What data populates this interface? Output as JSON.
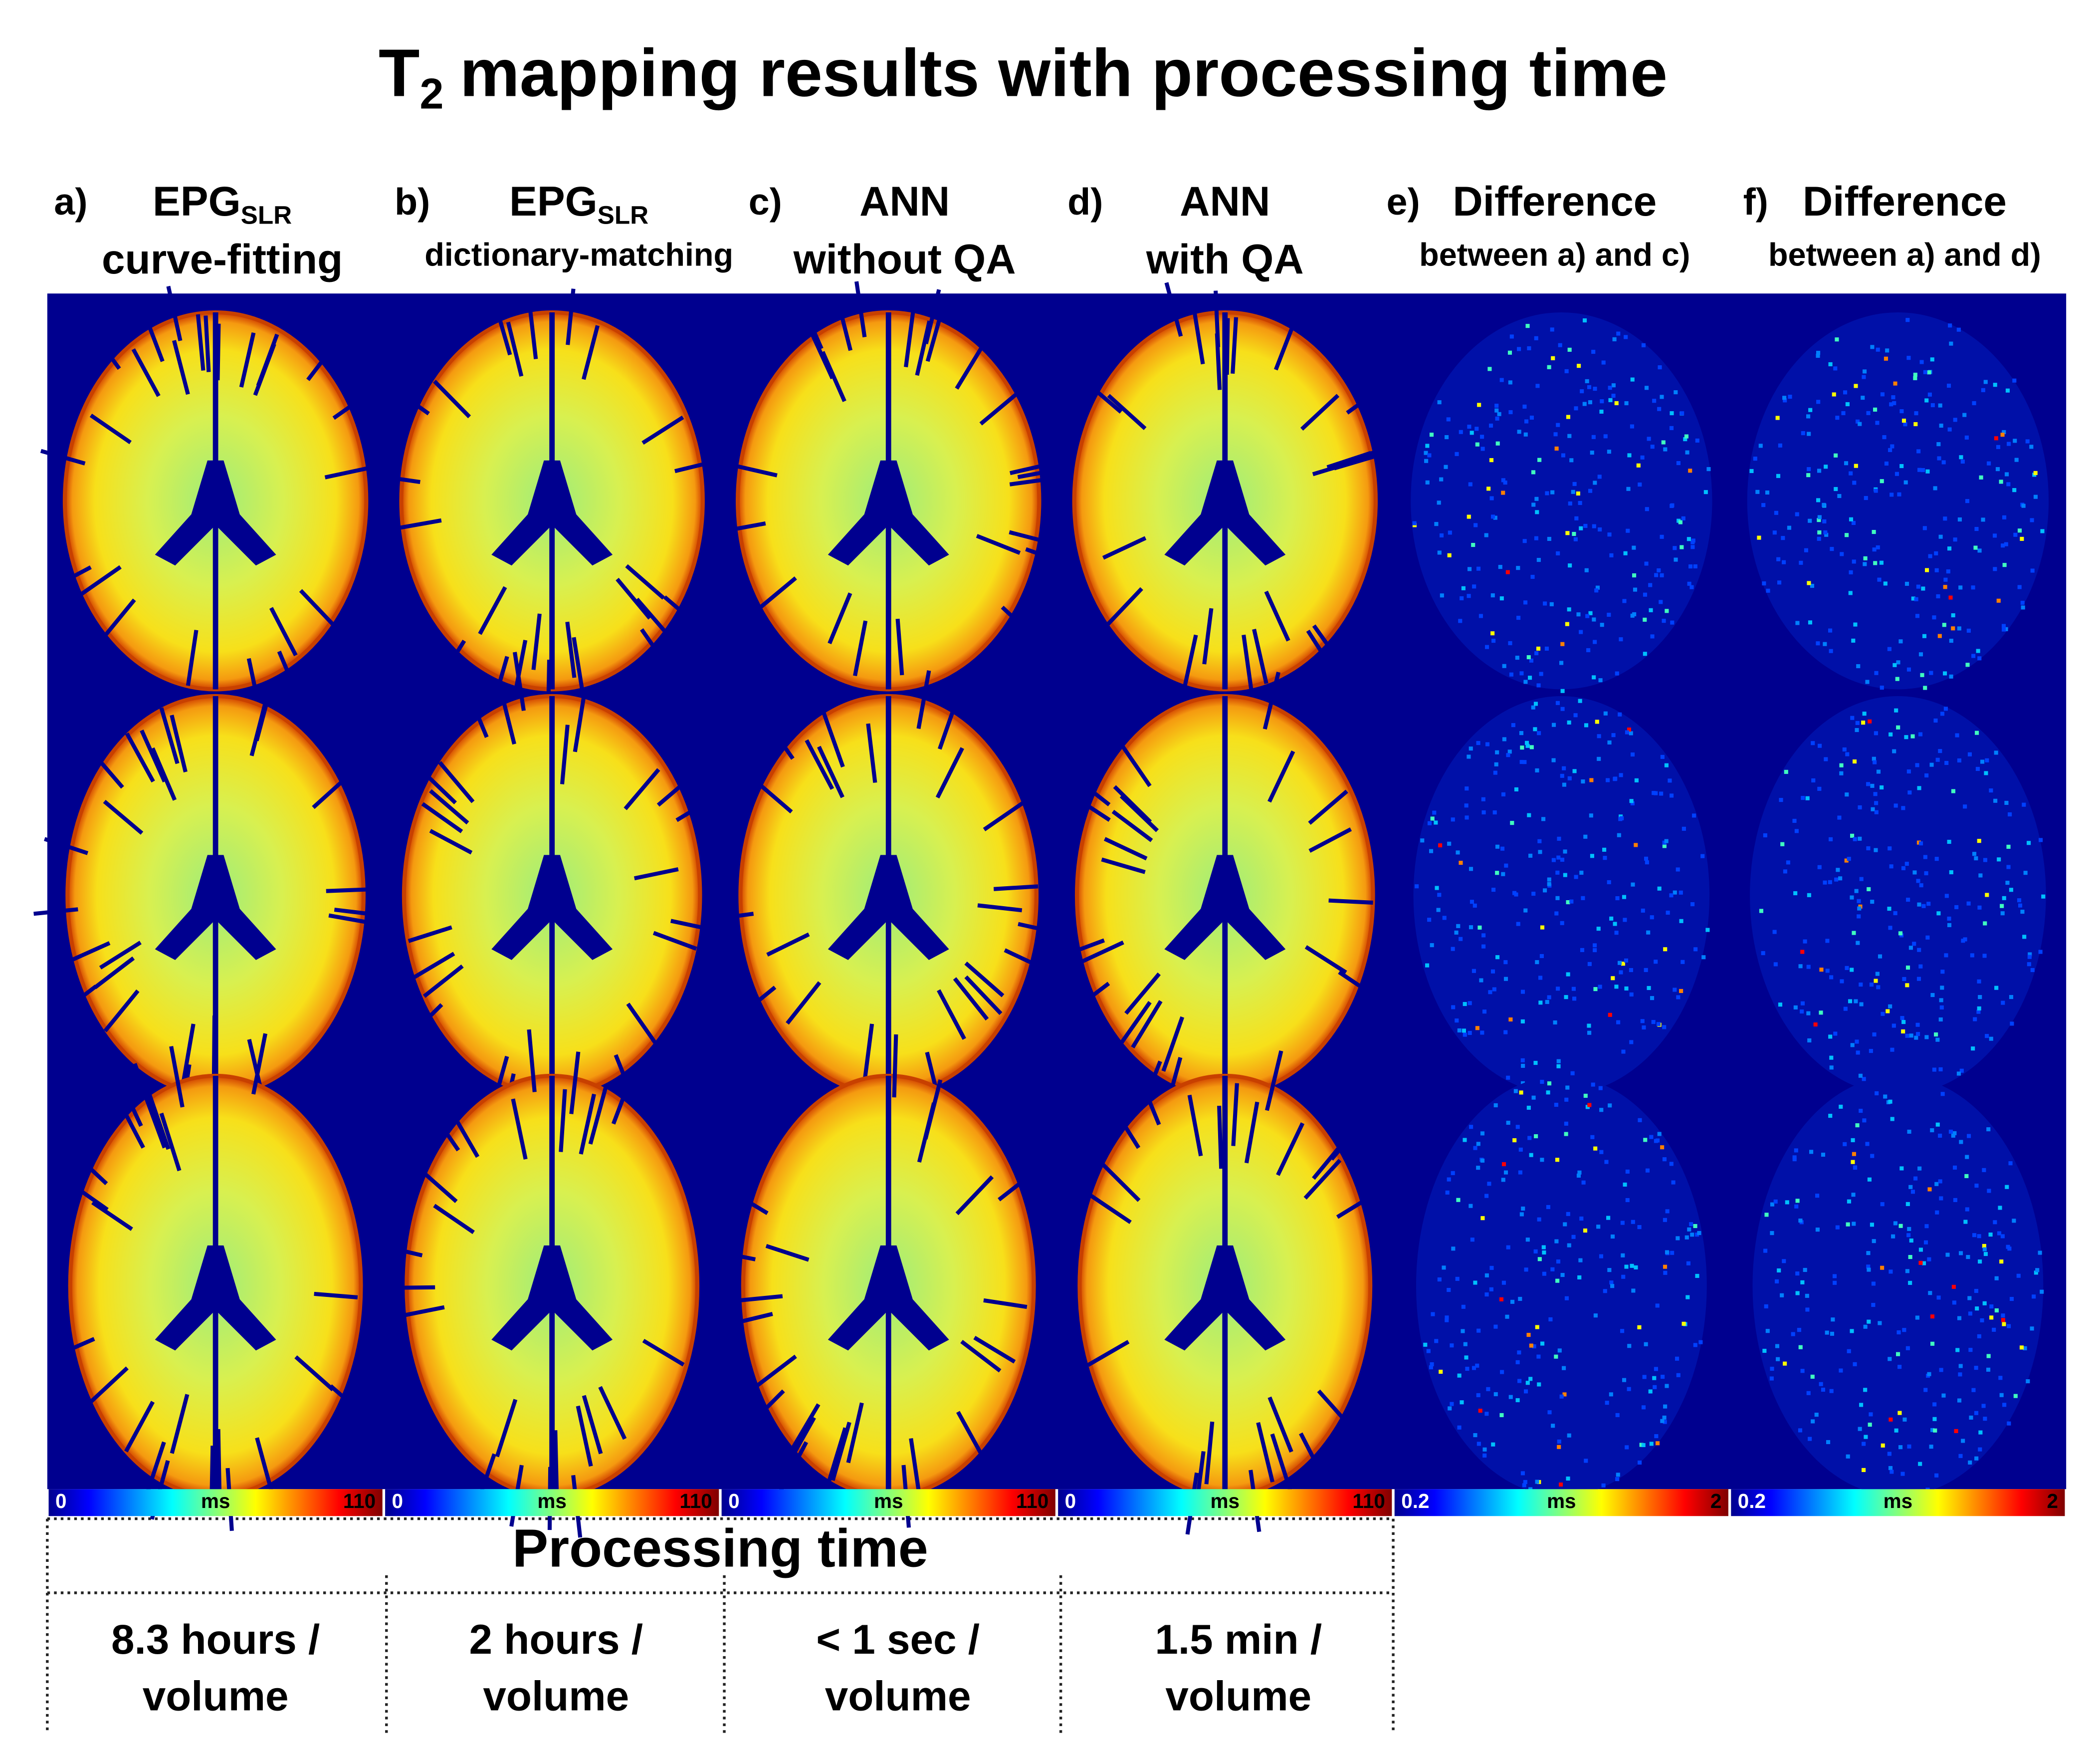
{
  "title": {
    "prefix": "T",
    "subscript": "2",
    "text": "mapping results with processing time"
  },
  "columns": [
    {
      "letter": "a)",
      "heading": "EPG",
      "heading_sub": "SLR",
      "subheading": "curve-fitting",
      "colorbar": {
        "min": 0,
        "unit": "ms",
        "max": 110
      }
    },
    {
      "letter": "b)",
      "heading": "EPG",
      "heading_sub": "SLR",
      "subheading": "dictionary-matching",
      "colorbar": {
        "min": 0,
        "unit": "ms",
        "max": 110
      }
    },
    {
      "letter": "c)",
      "heading": "ANN",
      "subheading": "without QA",
      "colorbar": {
        "min": 0,
        "unit": "ms",
        "max": 110
      }
    },
    {
      "letter": "d)",
      "heading": "ANN",
      "subheading": "with QA",
      "colorbar": {
        "min": 0,
        "unit": "ms",
        "max": 110
      }
    },
    {
      "letter": "e)",
      "heading": "Difference",
      "subheading": "between a) and c)",
      "colorbar": {
        "min": 0.2,
        "unit": "ms",
        "max": 2
      }
    },
    {
      "letter": "f)",
      "heading": "Difference",
      "subheading": "between a) and d)",
      "colorbar": {
        "min": 0.2,
        "unit": "ms",
        "max": 2
      }
    }
  ],
  "processing": {
    "title": "Processing time",
    "times": [
      {
        "line1": "8.3 hours /",
        "line2": "volume"
      },
      {
        "line1": "2 hours /",
        "line2": "volume"
      },
      {
        "line1": "< 1 sec /",
        "line2": "volume"
      },
      {
        "line1": "1.5 min /",
        "line2": "volume"
      }
    ]
  }
}
